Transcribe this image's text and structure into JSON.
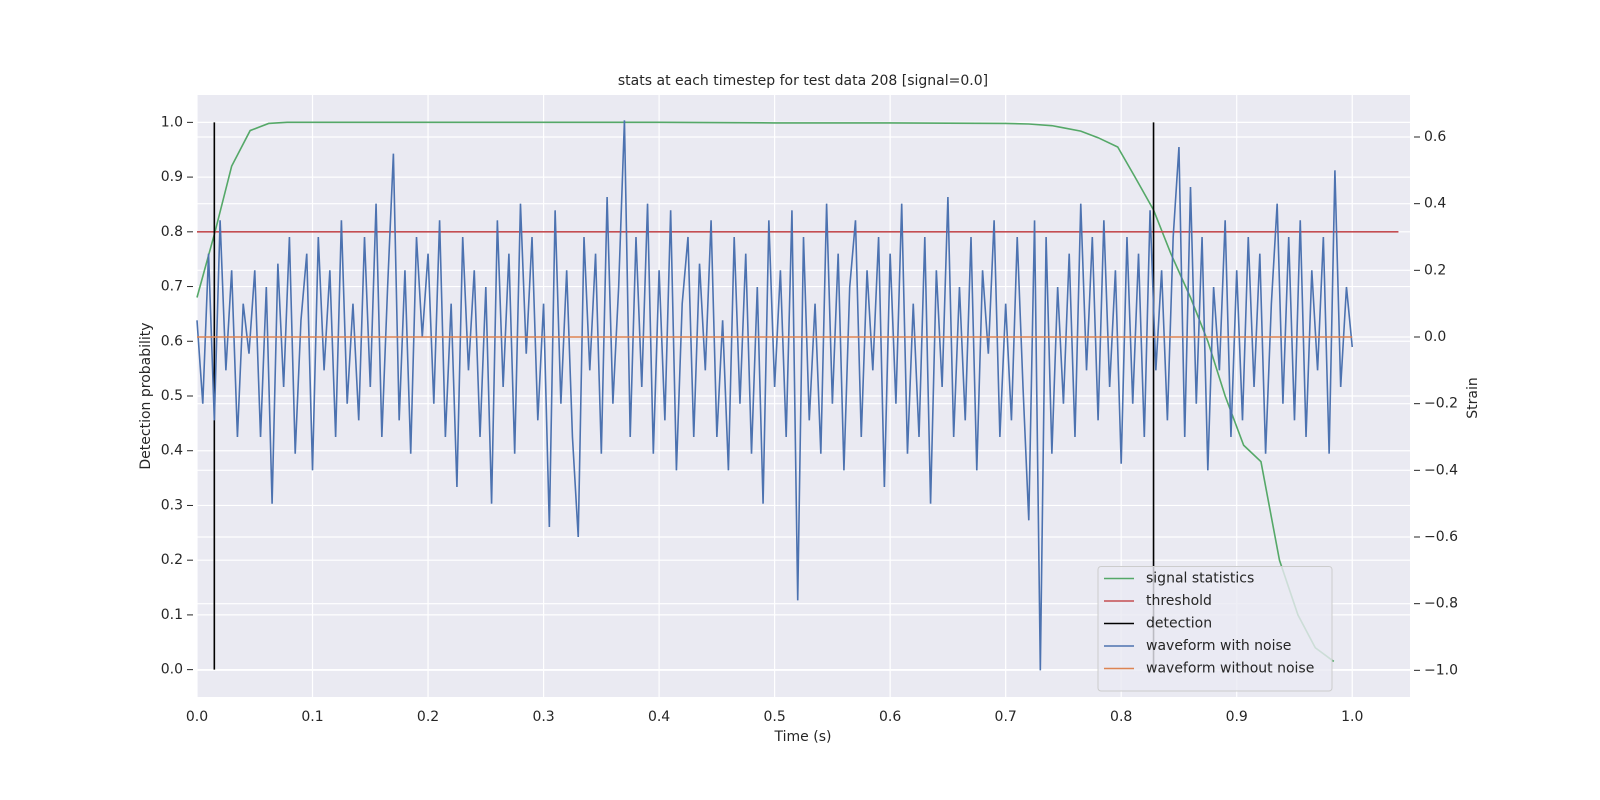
{
  "chart_data": {
    "type": "line",
    "title": "stats at each timestep for test data 208 [signal=0.0]",
    "xlabel": "Time (s)",
    "ylabel": "Detection probability",
    "y2label": "Strain",
    "xlim": [
      0,
      1.05
    ],
    "ylim": [
      -0.05,
      1.05
    ],
    "y2lim": [
      -1.08,
      0.726
    ],
    "xticks": [
      {
        "value": 0,
        "label": "0.0"
      },
      0.1,
      0.2,
      0.3,
      0.4,
      0.5,
      0.6,
      0.7,
      0.8,
      0.9,
      {
        "value": 1,
        "label": "1.0"
      }
    ],
    "yticks": [
      {
        "value": 0,
        "label": "0.0"
      },
      0.1,
      0.2,
      0.3,
      0.4,
      0.5,
      0.6,
      0.7,
      0.8,
      0.9,
      {
        "value": 1,
        "label": "1.0"
      }
    ],
    "y2ticks": [
      0.6,
      0.4,
      0.2,
      {
        "value": 0,
        "label": "0.0"
      },
      {
        "value": -0.2,
        "label": "−0.2"
      },
      {
        "value": -0.4,
        "label": "−0.4"
      },
      {
        "value": -0.6,
        "label": "−0.6"
      },
      {
        "value": -0.8,
        "label": "−0.8"
      },
      {
        "value": -1,
        "label": "−1.0"
      }
    ],
    "grid": true,
    "legend": "lower right",
    "series": [
      {
        "name": "signal statistics",
        "color": "#55a868",
        "x": [
          0,
          0.0156,
          0.03,
          0.046,
          0.062,
          0.078,
          0.1,
          0.2,
          0.3,
          0.4,
          0.5,
          0.6,
          0.7,
          0.72,
          0.74,
          0.75,
          0.765,
          0.78,
          0.797,
          0.812,
          0.828,
          0.843,
          0.86,
          0.875,
          0.89,
          0.906,
          0.921,
          0.937,
          0.953,
          0.968,
          0.984
        ],
        "values": [
          0.68,
          0.8,
          0.92,
          0.985,
          0.998,
          1.0,
          1.0,
          1.0,
          1.0,
          1.0,
          0.999,
          0.999,
          0.998,
          0.997,
          0.994,
          0.99,
          0.984,
          0.972,
          0.955,
          0.9,
          0.84,
          0.76,
          0.68,
          0.6,
          0.5,
          0.41,
          0.38,
          0.2,
          0.1,
          0.04,
          0.015
        ]
      },
      {
        "name": "threshold",
        "color": "#c44e52",
        "x": [
          0,
          1.04
        ],
        "values": [
          0.8,
          0.8
        ]
      },
      {
        "name": "detection",
        "color": "#000000",
        "x": [
          0.015,
          0.015,
          null,
          0.828,
          0.828
        ],
        "values": [
          0,
          1,
          null,
          0,
          1
        ]
      },
      {
        "name": "waveform with noise",
        "color": "#4c72b0",
        "axis": "y2",
        "x": [
          0,
          0.005,
          0.01,
          0.015,
          0.02,
          0.025,
          0.03,
          0.035,
          0.04,
          0.045,
          0.05,
          0.055,
          0.06,
          0.065,
          0.07,
          0.075,
          0.08,
          0.085,
          0.09,
          0.095,
          0.1,
          0.105,
          0.11,
          0.115,
          0.12,
          0.125,
          0.13,
          0.135,
          0.14,
          0.145,
          0.15,
          0.155,
          0.16,
          0.165,
          0.17,
          0.175,
          0.18,
          0.185,
          0.19,
          0.195,
          0.2,
          0.205,
          0.21,
          0.215,
          0.22,
          0.225,
          0.23,
          0.235,
          0.24,
          0.245,
          0.25,
          0.255,
          0.26,
          0.265,
          0.27,
          0.275,
          0.28,
          0.285,
          0.29,
          0.295,
          0.3,
          0.305,
          0.31,
          0.315,
          0.32,
          0.325,
          0.33,
          0.335,
          0.34,
          0.345,
          0.35,
          0.355,
          0.36,
          0.365,
          0.37,
          0.375,
          0.38,
          0.385,
          0.39,
          0.395,
          0.4,
          0.405,
          0.41,
          0.415,
          0.42,
          0.425,
          0.43,
          0.435,
          0.44,
          0.445,
          0.45,
          0.455,
          0.46,
          0.465,
          0.47,
          0.475,
          0.48,
          0.485,
          0.49,
          0.495,
          0.5,
          0.505,
          0.51,
          0.515,
          0.52,
          0.525,
          0.53,
          0.535,
          0.54,
          0.545,
          0.55,
          0.555,
          0.56,
          0.565,
          0.57,
          0.575,
          0.58,
          0.585,
          0.59,
          0.595,
          0.6,
          0.605,
          0.61,
          0.615,
          0.62,
          0.625,
          0.63,
          0.635,
          0.64,
          0.645,
          0.65,
          0.655,
          0.66,
          0.665,
          0.67,
          0.675,
          0.68,
          0.685,
          0.69,
          0.695,
          0.7,
          0.705,
          0.71,
          0.715,
          0.72,
          0.725,
          0.73,
          0.735,
          0.74,
          0.745,
          0.75,
          0.755,
          0.76,
          0.765,
          0.77,
          0.775,
          0.78,
          0.785,
          0.79,
          0.795,
          0.8,
          0.805,
          0.81,
          0.815,
          0.82,
          0.825,
          0.83,
          0.835,
          0.84,
          0.845,
          0.85,
          0.855,
          0.86,
          0.865,
          0.87,
          0.875,
          0.88,
          0.885,
          0.89,
          0.895,
          0.9,
          0.905,
          0.91,
          0.915,
          0.92,
          0.925,
          0.93,
          0.935,
          0.94,
          0.945,
          0.95,
          0.955,
          0.96,
          0.965,
          0.97,
          0.975,
          0.98,
          0.985,
          0.99,
          0.995,
          1.0
        ],
        "values": [
          0.05,
          -0.2,
          0.25,
          -0.25,
          0.35,
          -0.1,
          0.2,
          -0.3,
          0.1,
          -0.05,
          0.2,
          -0.3,
          0.15,
          -0.5,
          0.22,
          -0.15,
          0.3,
          -0.35,
          0.05,
          0.25,
          -0.4,
          0.3,
          -0.1,
          0.2,
          -0.3,
          0.35,
          -0.2,
          0.1,
          -0.25,
          0.3,
          -0.15,
          0.4,
          -0.3,
          0.15,
          0.55,
          -0.25,
          0.2,
          -0.35,
          0.3,
          0.0,
          0.25,
          -0.2,
          0.35,
          -0.3,
          0.1,
          -0.45,
          0.3,
          -0.1,
          0.2,
          -0.3,
          0.15,
          -0.5,
          0.35,
          -0.15,
          0.25,
          -0.35,
          0.4,
          -0.05,
          0.3,
          -0.25,
          0.1,
          -0.57,
          0.38,
          -0.2,
          0.2,
          -0.3,
          -0.6,
          0.3,
          -0.1,
          0.25,
          -0.35,
          0.42,
          -0.2,
          0.15,
          0.65,
          -0.3,
          0.3,
          -0.15,
          0.4,
          -0.35,
          0.2,
          -0.25,
          0.38,
          -0.4,
          0.1,
          0.3,
          -0.3,
          0.22,
          -0.1,
          0.35,
          -0.3,
          0.05,
          -0.4,
          0.3,
          -0.2,
          0.25,
          -0.35,
          0.15,
          -0.5,
          0.35,
          -0.15,
          0.2,
          -0.3,
          0.38,
          -0.79,
          0.3,
          -0.25,
          0.1,
          -0.35,
          0.4,
          -0.2,
          0.25,
          -0.4,
          0.15,
          0.35,
          -0.3,
          0.2,
          -0.1,
          0.3,
          -0.45,
          0.25,
          -0.2,
          0.4,
          -0.35,
          0.1,
          -0.3,
          0.3,
          -0.5,
          0.2,
          -0.15,
          0.42,
          -0.3,
          0.15,
          -0.25,
          0.3,
          -0.4,
          0.2,
          -0.05,
          0.35,
          -0.3,
          0.1,
          -0.25,
          0.3,
          -0.15,
          -0.55,
          0.35,
          -1.0,
          0.3,
          -0.35,
          0.15,
          -0.2,
          0.25,
          -0.3,
          0.4,
          -0.1,
          0.3,
          -0.25,
          0.35,
          -0.15,
          0.2,
          -0.38,
          0.3,
          -0.2,
          0.25,
          -0.3,
          0.38,
          -0.1,
          0.2,
          -0.25,
          0.3,
          0.57,
          -0.3,
          0.45,
          -0.2,
          0.3,
          -0.4,
          0.15,
          -0.1,
          0.35,
          -0.3,
          0.2,
          -0.25,
          0.3,
          -0.15,
          0.25,
          -0.35,
          0.1,
          0.4,
          -0.2,
          0.3,
          -0.25,
          0.35,
          -0.3,
          0.2,
          -0.1,
          0.3,
          -0.35,
          0.5,
          -0.15,
          0.15,
          -0.03
        ]
      },
      {
        "name": "waveform without noise",
        "color": "#dd8452",
        "axis": "y2",
        "x": [
          0,
          1.0
        ],
        "values": [
          0,
          0
        ]
      }
    ]
  }
}
